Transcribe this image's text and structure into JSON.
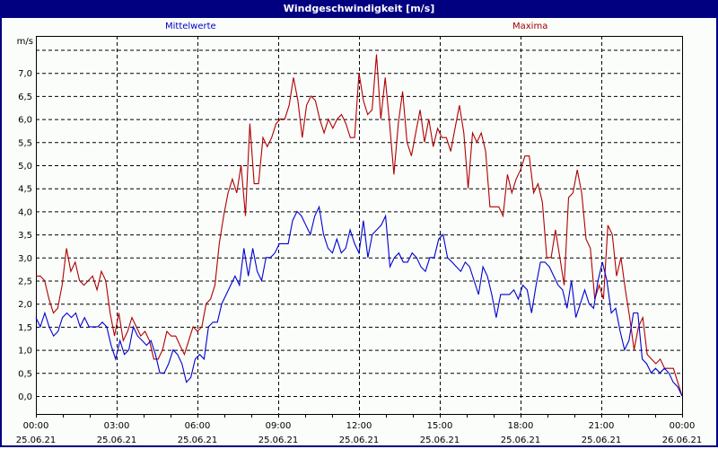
{
  "window": {
    "title": "Windgeschwindigkeit [m/s]"
  },
  "legend": {
    "mean_label": "Mittelwerte",
    "max_label": "Maxima",
    "mean_color": "#0000d0",
    "max_color": "#b00000"
  },
  "axis": {
    "y_unit": "m/s",
    "y_ticks": [
      "7,0",
      "6,5",
      "6,0",
      "5,5",
      "5,0",
      "4,5",
      "4,0",
      "3,5",
      "3,0",
      "2,5",
      "2,0",
      "1,5",
      "1,0",
      "0,5",
      "0,0"
    ],
    "x_ticks": [
      {
        "time": "00:00",
        "date": "25.06.21"
      },
      {
        "time": "03:00",
        "date": "25.06.21"
      },
      {
        "time": "06:00",
        "date": "25.06.21"
      },
      {
        "time": "09:00",
        "date": "25.06.21"
      },
      {
        "time": "12:00",
        "date": "25.06.21"
      },
      {
        "time": "15:00",
        "date": "25.06.21"
      },
      {
        "time": "18:00",
        "date": "25.06.21"
      },
      {
        "time": "21:00",
        "date": "25.06.21"
      },
      {
        "time": "00:00",
        "date": "26.06.21"
      }
    ]
  },
  "chart_data": {
    "type": "line",
    "title": "Windgeschwindigkeit [m/s]",
    "xlabel": "",
    "ylabel": "m/s",
    "ylim": [
      -0.4,
      7.7
    ],
    "xlim": [
      "25.06.21 00:00",
      "26.06.21 00:00"
    ],
    "interval_minutes": 10,
    "grid": true,
    "legend_position": "top",
    "series": [
      {
        "name": "Mittelwerte",
        "color": "#0000d0",
        "values": [
          1.7,
          1.5,
          1.8,
          1.5,
          1.3,
          1.4,
          1.7,
          1.8,
          1.7,
          1.8,
          1.5,
          1.7,
          1.5,
          1.5,
          1.5,
          1.6,
          1.5,
          1.1,
          0.8,
          1.2,
          0.9,
          1.0,
          1.5,
          1.3,
          1.2,
          1.1,
          1.2,
          0.9,
          0.5,
          0.5,
          0.7,
          1.0,
          0.9,
          0.7,
          0.3,
          0.4,
          0.8,
          0.9,
          0.8,
          1.5,
          1.6,
          1.6,
          2.0,
          2.2,
          2.4,
          2.6,
          2.4,
          3.2,
          2.6,
          3.2,
          2.7,
          2.5,
          3.0,
          3.0,
          3.1,
          3.3,
          3.3,
          3.3,
          3.8,
          4.0,
          3.9,
          3.7,
          3.5,
          3.9,
          4.1,
          3.5,
          3.2,
          3.1,
          3.4,
          3.1,
          3.2,
          3.6,
          3.3,
          3.1,
          3.8,
          3.0,
          3.5,
          3.6,
          3.7,
          3.9,
          2.8,
          3.0,
          3.1,
          2.9,
          2.9,
          3.1,
          3.0,
          2.8,
          2.7,
          3.0,
          3.0,
          3.4,
          3.5,
          3.0,
          2.9,
          2.8,
          2.7,
          2.9,
          2.8,
          2.5,
          2.2,
          2.8,
          2.6,
          2.2,
          1.7,
          2.2,
          2.2,
          2.2,
          2.3,
          2.1,
          2.4,
          2.3,
          1.8,
          2.4,
          2.9,
          2.9,
          2.8,
          2.6,
          2.4,
          2.3,
          1.9,
          2.5,
          1.7,
          2.0,
          2.3,
          2.0,
          1.9,
          2.5,
          2.9,
          2.5,
          1.8,
          1.9,
          1.4,
          1.0,
          1.2,
          1.8,
          1.8,
          0.8,
          0.7,
          0.5,
          0.6,
          0.5,
          0.6,
          0.5,
          0.3,
          0.2,
          0.0
        ]
      },
      {
        "name": "Maxima",
        "color": "#b00000",
        "values": [
          2.6,
          2.6,
          2.5,
          2.1,
          1.8,
          1.9,
          2.4,
          3.2,
          2.7,
          2.9,
          2.5,
          2.4,
          2.5,
          2.6,
          2.3,
          2.7,
          2.5,
          1.8,
          1.3,
          1.8,
          1.2,
          1.4,
          1.7,
          1.5,
          1.3,
          1.4,
          1.2,
          0.8,
          0.8,
          1.0,
          1.4,
          1.3,
          1.3,
          1.1,
          0.9,
          1.2,
          1.5,
          1.4,
          1.5,
          2.0,
          2.1,
          2.4,
          3.3,
          3.9,
          4.4,
          4.7,
          4.4,
          5.0,
          3.9,
          5.9,
          4.6,
          4.6,
          5.6,
          5.4,
          5.6,
          5.9,
          6.0,
          6.0,
          6.3,
          6.9,
          6.4,
          5.6,
          6.3,
          6.5,
          6.4,
          6.0,
          5.7,
          6.0,
          5.8,
          6.0,
          6.1,
          5.9,
          5.6,
          5.6,
          7.0,
          6.4,
          6.1,
          6.2,
          7.4,
          6.0,
          6.9,
          5.9,
          4.8,
          5.9,
          6.6,
          5.5,
          5.2,
          5.7,
          6.2,
          5.5,
          6.0,
          5.4,
          5.8,
          5.6,
          5.6,
          5.3,
          5.8,
          6.3,
          5.7,
          4.5,
          5.7,
          5.5,
          5.7,
          5.3,
          4.1,
          4.1,
          4.1,
          3.9,
          4.8,
          4.4,
          4.7,
          4.9,
          5.2,
          5.2,
          4.4,
          4.6,
          4.2,
          3.0,
          3.0,
          3.6,
          3.0,
          2.4,
          4.3,
          4.4,
          4.9,
          4.4,
          3.4,
          3.2,
          2.1,
          2.4,
          2.1,
          3.7,
          3.5,
          2.6,
          3.0,
          2.3,
          1.7,
          1.0,
          1.5,
          1.7,
          0.9,
          0.8,
          0.7,
          0.8,
          0.6,
          0.6,
          0.6,
          0.3,
          0.0
        ]
      }
    ]
  }
}
